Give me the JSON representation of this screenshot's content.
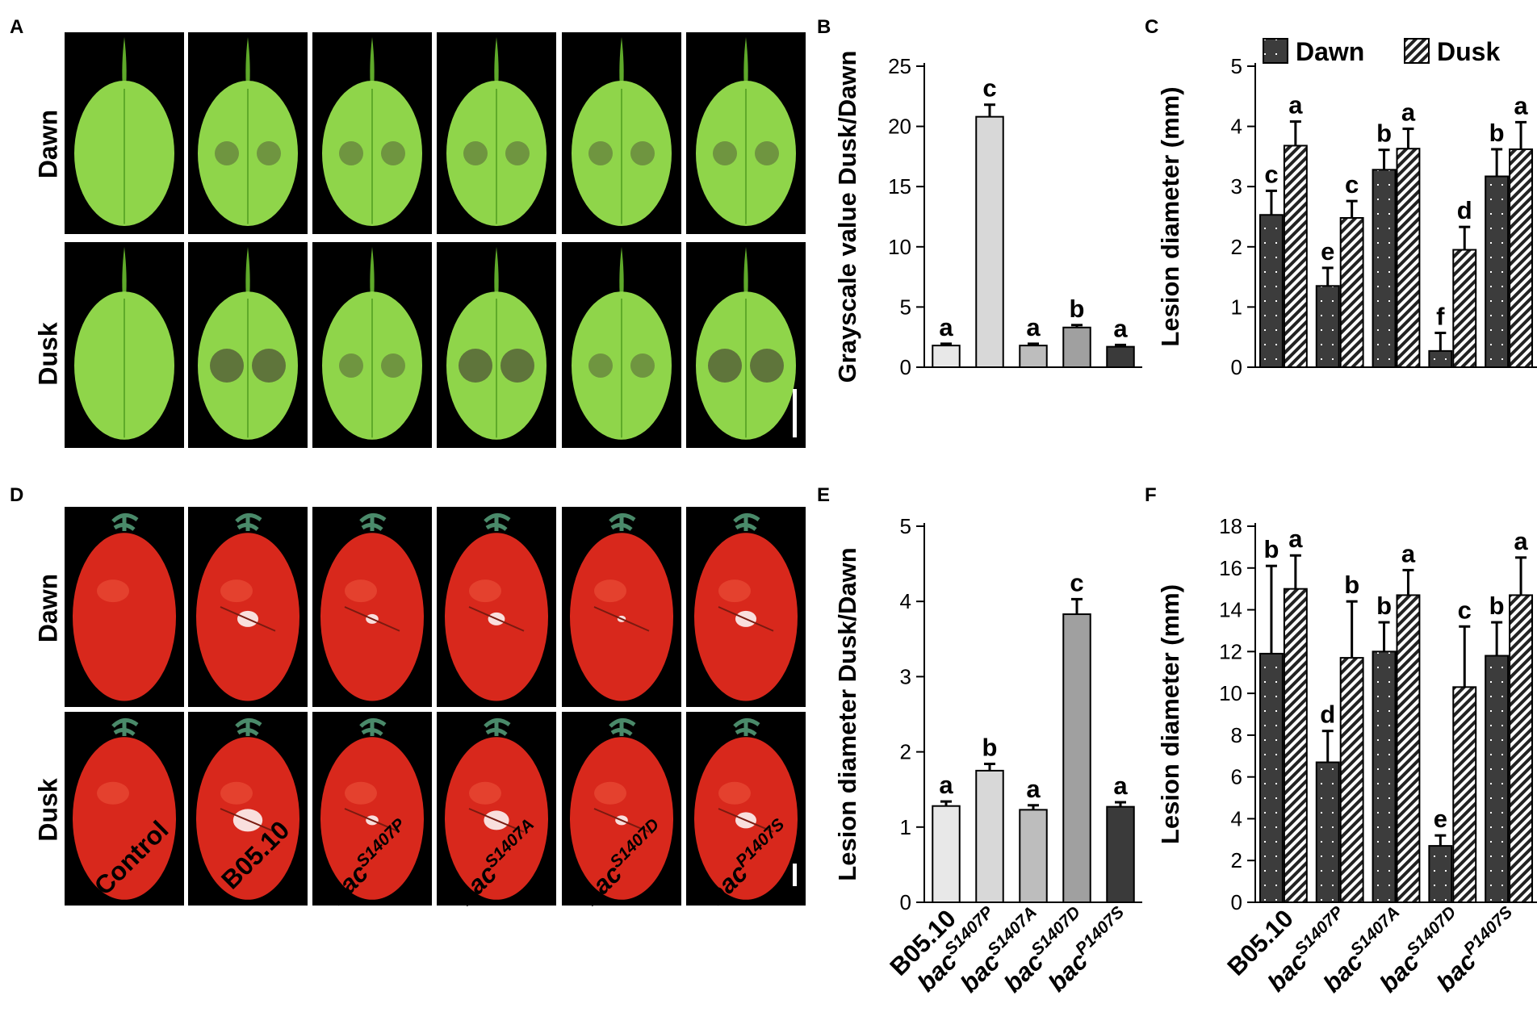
{
  "panels": {
    "A": "A",
    "B": "B",
    "C": "C",
    "D": "D",
    "E": "E",
    "F": "F"
  },
  "rows": {
    "dawn": "Dawn",
    "dusk": "Dusk"
  },
  "columns": [
    {
      "base": "Control",
      "sup": ""
    },
    {
      "base": "B05.10",
      "sup": ""
    },
    {
      "base": "bac",
      "sup": "S1407P"
    },
    {
      "base": "bac",
      "sup": "S1407A"
    },
    {
      "base": "bac",
      "sup": "S1407D"
    },
    {
      "base": "bac",
      "sup": "P1407S"
    }
  ],
  "colors": {
    "leaf": "#8fd54a",
    "leaf_dark": "#5faa2a",
    "lesion": "#5a6a3a",
    "tomato": "#d8281c",
    "tomato_hi": "#f05a40",
    "stem": "#4a8a6a",
    "bar_light": "#e6e6e6",
    "bar_mid": "#b0b0b0",
    "bar_dark": "#3c3c3c"
  },
  "chart_data": [
    {
      "id": "B",
      "type": "bar",
      "categories": [
        "",
        "",
        "",
        "",
        ""
      ],
      "values": [
        1.8,
        20.8,
        1.8,
        3.3,
        1.7
      ],
      "errors": [
        0.15,
        1.0,
        0.15,
        0.2,
        0.15
      ],
      "letters": [
        "a",
        "c",
        "a",
        "b",
        "a"
      ],
      "fills": [
        "#e8e8e8",
        "#d8d8d8",
        "#bdbdbd",
        "#a0a0a0",
        "#3a3a3a"
      ],
      "ylabel": "Grayscale value Dusk/Dawn",
      "ylim": [
        0,
        25
      ],
      "yticks": [
        "0",
        "5",
        "10",
        "15",
        "20",
        "25"
      ]
    },
    {
      "id": "C",
      "type": "bar",
      "categories": [
        "",
        "",
        "",
        "",
        ""
      ],
      "series": [
        {
          "name": "Dawn",
          "values": [
            2.53,
            1.35,
            3.28,
            0.27,
            3.17
          ],
          "errors": [
            0.4,
            0.3,
            0.33,
            0.3,
            0.45
          ],
          "letters": [
            "c",
            "e",
            "b",
            "f",
            "b"
          ]
        },
        {
          "name": "Dusk",
          "values": [
            3.68,
            2.48,
            3.63,
            1.95,
            3.62
          ],
          "errors": [
            0.4,
            0.28,
            0.33,
            0.38,
            0.45
          ],
          "letters": [
            "a",
            "c",
            "a",
            "d",
            "a"
          ]
        }
      ],
      "ylabel": "Lesion diameter  (mm)",
      "ylim": [
        0,
        5
      ],
      "yticks": [
        "0",
        "1",
        "2",
        "3",
        "4",
        "5"
      ],
      "legend_position": "top"
    },
    {
      "id": "E",
      "type": "bar",
      "categories": [
        "B05.10",
        "bac|S1407P",
        "bac|S1407A",
        "bac|S1407D",
        "bac|P1407S"
      ],
      "values": [
        1.28,
        1.75,
        1.23,
        3.83,
        1.27
      ],
      "errors": [
        0.06,
        0.09,
        0.06,
        0.2,
        0.06
      ],
      "letters": [
        "a",
        "b",
        "a",
        "c",
        "a"
      ],
      "fills": [
        "#e8e8e8",
        "#d8d8d8",
        "#bdbdbd",
        "#a0a0a0",
        "#3a3a3a"
      ],
      "ylabel": "Lesion diameter Dusk/Dawn",
      "ylim": [
        0,
        5
      ],
      "yticks": [
        "0",
        "1",
        "2",
        "3",
        "4",
        "5"
      ]
    },
    {
      "id": "F",
      "type": "bar",
      "categories": [
        "B05.10",
        "bac|S1407P",
        "bac|S1407A",
        "bac|S1407D",
        "bac|P1407S"
      ],
      "series": [
        {
          "name": "Dawn",
          "values": [
            11.9,
            6.7,
            12.0,
            2.7,
            11.8
          ],
          "errors": [
            4.2,
            1.5,
            1.4,
            0.5,
            1.6
          ],
          "letters": [
            "b",
            "d",
            "b",
            "e",
            "b"
          ]
        },
        {
          "name": "Dusk",
          "values": [
            15.0,
            11.7,
            14.7,
            10.3,
            14.7
          ],
          "errors": [
            1.6,
            2.7,
            1.2,
            2.9,
            1.8
          ],
          "letters": [
            "a",
            "b",
            "a",
            "c",
            "a"
          ]
        }
      ],
      "ylabel": "Lesion diameter  (mm)",
      "ylim": [
        0,
        18
      ],
      "yticks": [
        "0",
        "2",
        "4",
        "6",
        "8",
        "10",
        "12",
        "14",
        "16",
        "18"
      ]
    }
  ]
}
